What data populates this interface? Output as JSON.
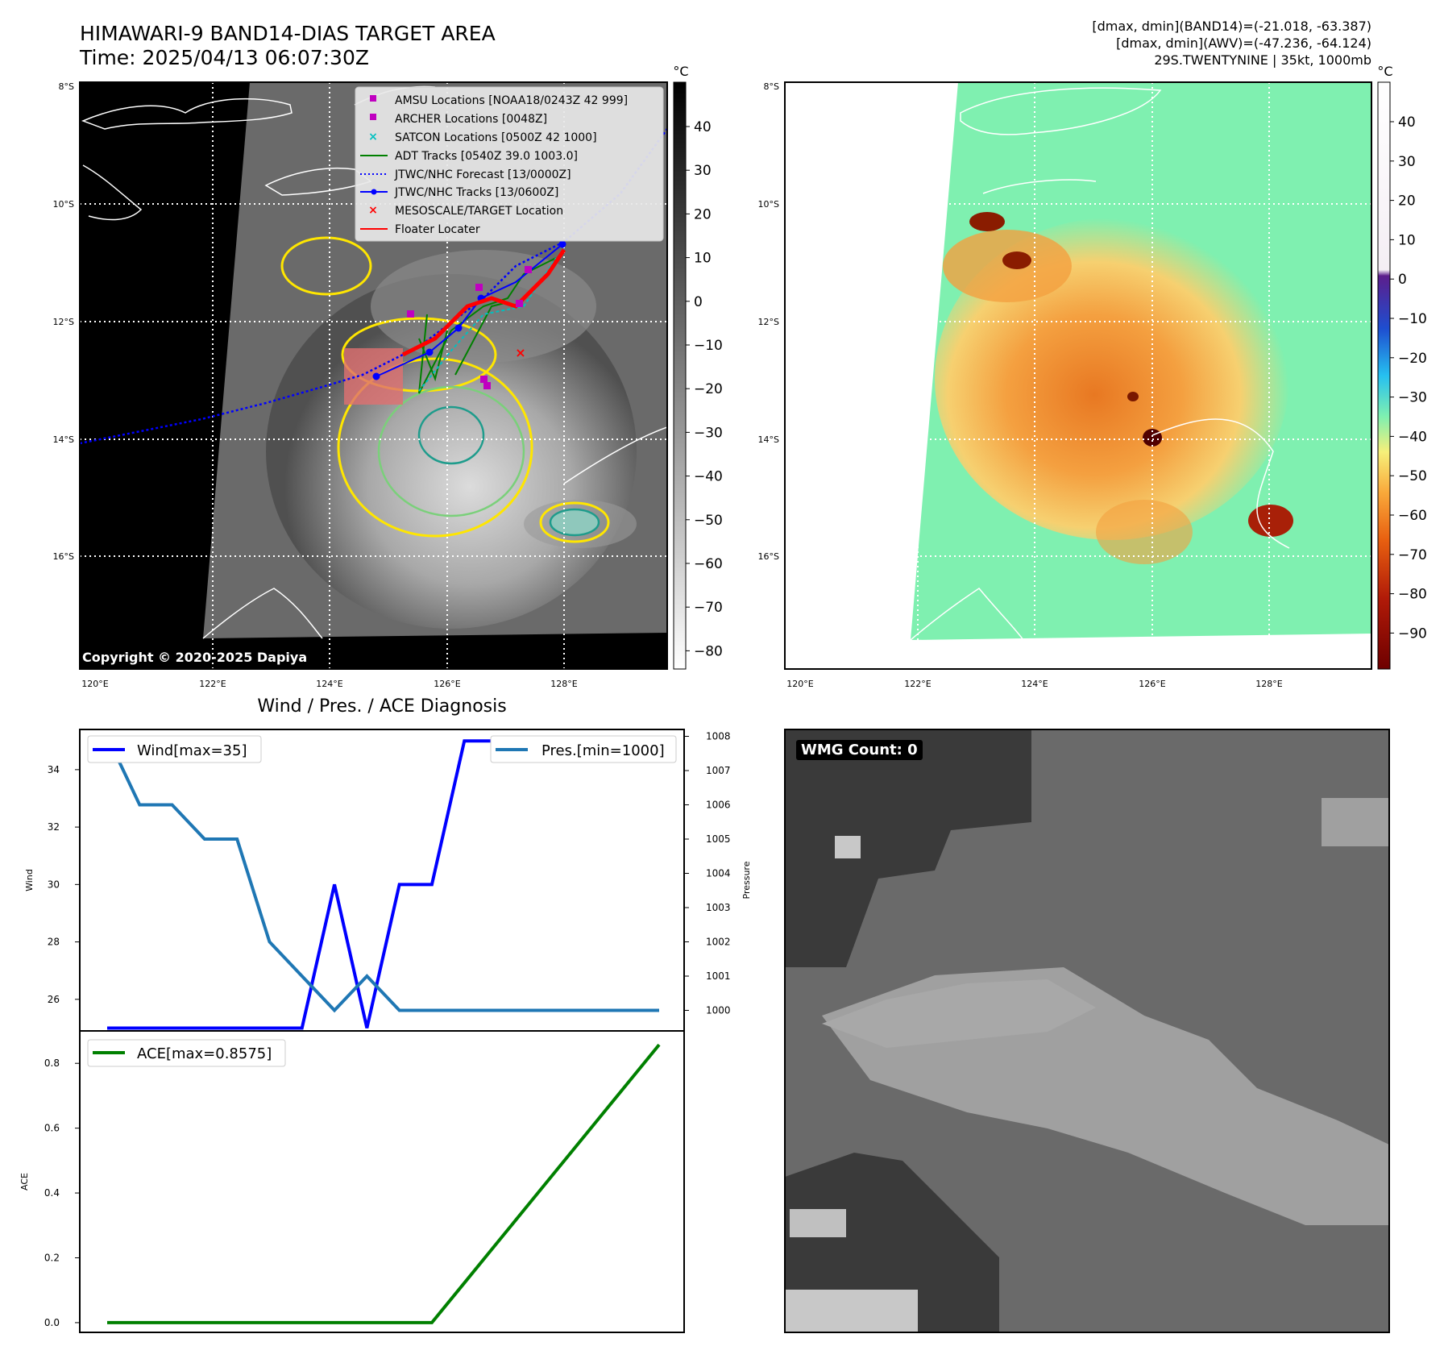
{
  "header": {
    "title": "HIMAWARI-9 BAND14-DIAS TARGET AREA",
    "time": "Time: 2025/04/13 06:07:30Z",
    "info_line1": "[dmax, dmin](BAND14)=(-21.018, -63.387)",
    "info_line2": "[dmax, dmin](AWV)=(-47.236, -64.124)",
    "info_line3": "29S.TWENTYNINE | 35kt, 1000mb"
  },
  "maps": {
    "lat_labels": [
      "8°S",
      "10°S",
      "12°S",
      "14°S",
      "16°S"
    ],
    "lon_labels": [
      "120°E",
      "122°E",
      "124°E",
      "126°E",
      "128°E"
    ],
    "copyright": "Copyright © 2020-2025 Dapiya",
    "left_colorbar": {
      "unit": "°C",
      "ticks": [
        "40",
        "30",
        "20",
        "10",
        "0",
        "−10",
        "−20",
        "−30",
        "−40",
        "−50",
        "−60",
        "−70",
        "−80"
      ]
    },
    "right_colorbar": {
      "unit": "°C",
      "ticks": [
        "40",
        "30",
        "20",
        "10",
        "0",
        "−10",
        "−20",
        "−30",
        "−40",
        "−50",
        "−60",
        "−70",
        "−80",
        "−90"
      ]
    },
    "legend": [
      "AMSU Locations [NOAA18/0243Z 42 999]",
      "ARCHER Locations [0048Z]",
      "SATCON Locations [0500Z 42 1000]",
      "ADT Tracks [0540Z 39.0 1003.0]",
      "JTWC/NHC Forecast [13/0000Z]",
      "JTWC/NHC Tracks [13/0600Z]",
      "MESOSCALE/TARGET Location",
      "Floater Locater"
    ],
    "colors": {
      "amsu": "#c000c0",
      "satcon": "#00c0c0",
      "adt": "#008000",
      "forecast": "#0000ff",
      "tracks": "#0000ff",
      "target": "#ff0000",
      "floater": "#ff0000"
    }
  },
  "chart_data": [
    {
      "type": "line",
      "title": "Wind / Pres. / ACE Diagnosis",
      "ylabel": "Wind",
      "ylabel_right": "Pressure",
      "ylim": [
        24.9,
        35.4
      ],
      "ylim_right": [
        999.4,
        1008.2
      ],
      "y_ticks": [
        26,
        28,
        30,
        32,
        34
      ],
      "y_ticks_right": [
        1000,
        1001,
        1002,
        1003,
        1004,
        1005,
        1006,
        1007,
        1008
      ],
      "series": [
        {
          "name": "Wind[max=35]",
          "color": "#0000ff",
          "values": [
            25,
            25,
            25,
            25,
            25,
            25,
            25,
            30,
            25,
            30,
            30,
            35,
            35,
            35,
            35,
            35,
            35,
            35
          ]
        },
        {
          "name": "Pres.[min=1000]",
          "color": "#1f77b4",
          "axis": "right",
          "values": [
            1008,
            1006,
            1006,
            1005,
            1005,
            1002,
            1001,
            1000,
            1001,
            1000,
            1000,
            1000,
            1000,
            1000,
            1000,
            1000,
            1000,
            1000
          ]
        }
      ]
    },
    {
      "type": "line",
      "ylabel": "ACE",
      "ylim": [
        -0.03,
        0.9
      ],
      "y_ticks": [
        0.0,
        0.2,
        0.4,
        0.6,
        0.8
      ],
      "series": [
        {
          "name": "ACE[max=0.8575]",
          "color": "#008000",
          "values": [
            0,
            0,
            0,
            0,
            0,
            0,
            0,
            0,
            0,
            0,
            0,
            0.1225,
            0.245,
            0.3675,
            0.49,
            0.6125,
            0.735,
            0.8575
          ]
        }
      ]
    }
  ],
  "wmg": {
    "label": "WMG Count: 0"
  }
}
